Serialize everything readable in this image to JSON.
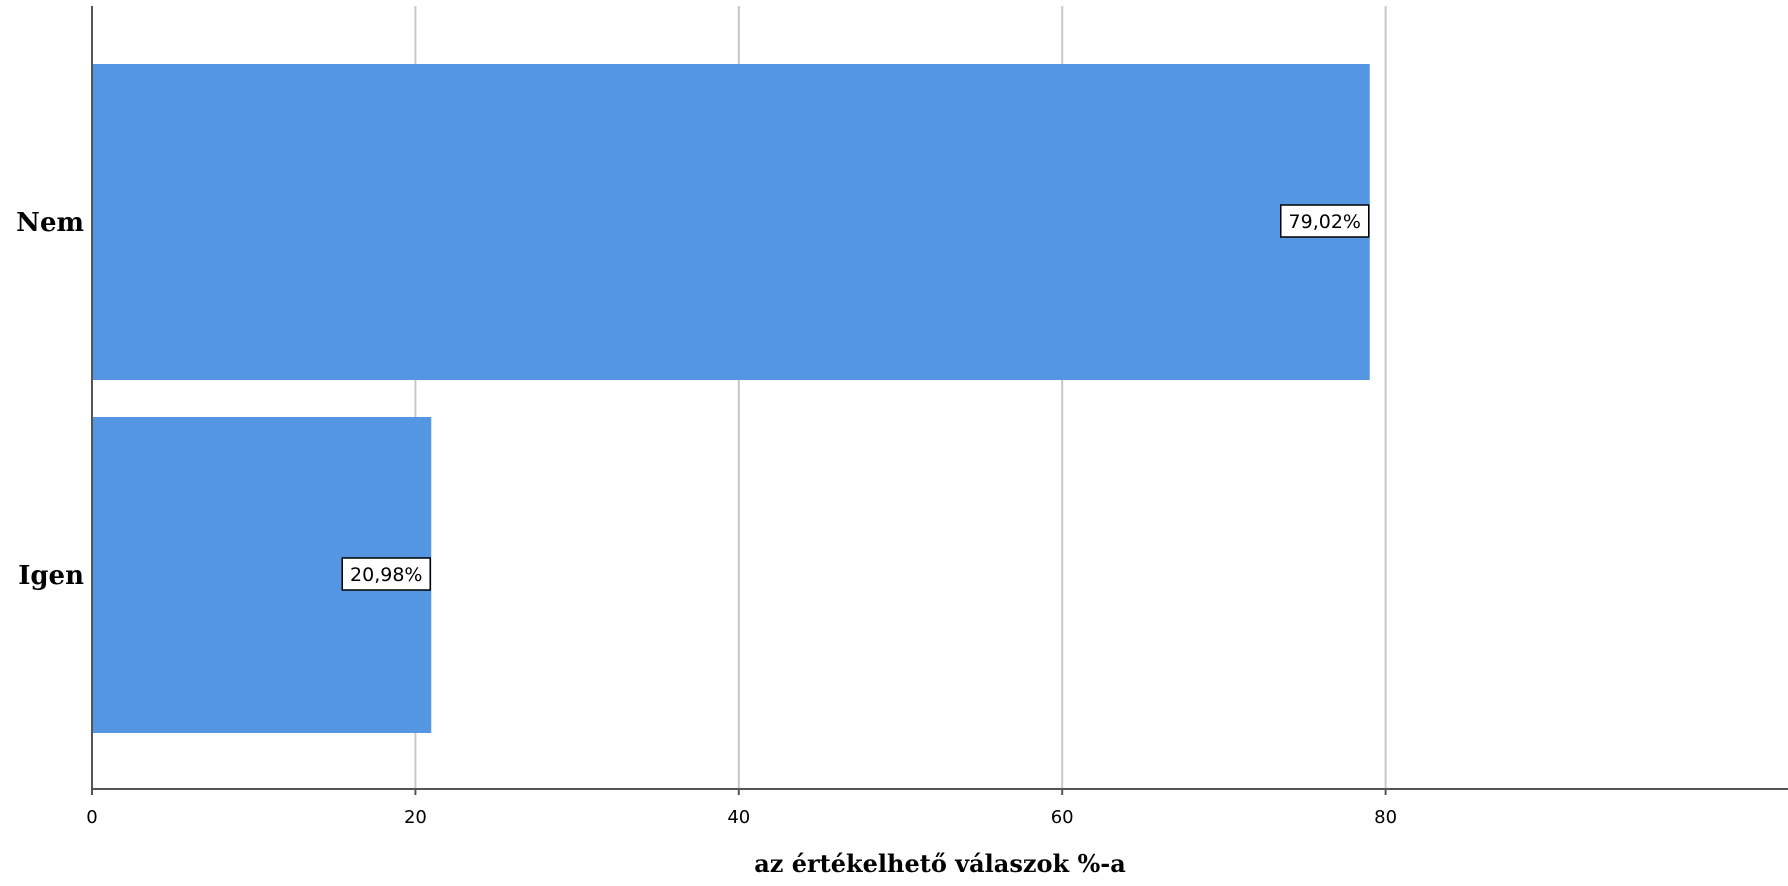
{
  "chart_data": {
    "type": "bar",
    "orientation": "horizontal",
    "categories": [
      "Nem",
      "Igen"
    ],
    "values": [
      79.02,
      20.98
    ],
    "data_labels": [
      "79,02%",
      "20,98%"
    ],
    "xlabel": "az értékelhető válaszok %-a",
    "ylabel": "",
    "xlim": [
      0,
      80
    ],
    "x_ticks": [
      "0",
      "20",
      "40",
      "60",
      "80"
    ],
    "grid": "vertical",
    "legend": "none",
    "bar_color": "#5596E3"
  }
}
